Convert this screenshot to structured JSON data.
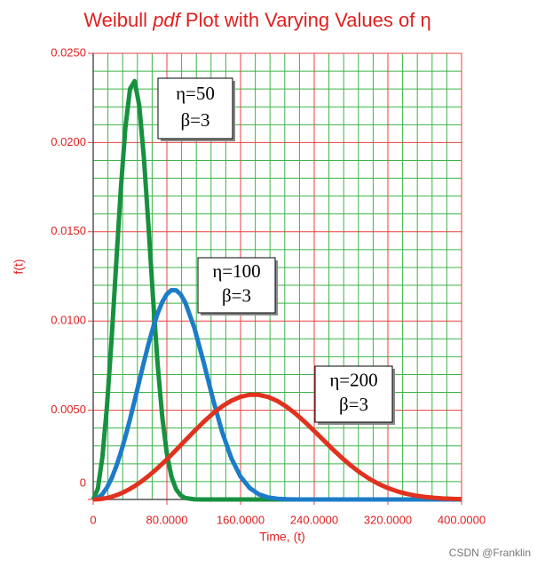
{
  "chart_data": {
    "type": "line",
    "title": [
      "Weibull",
      "pdf",
      "Plot with Varying Values of η"
    ],
    "x_label": "Time, (t)",
    "y_label": "f(t)",
    "watermark": "CSDN @Franklin",
    "x": [
      0,
      5,
      10,
      15,
      20,
      25,
      30,
      35,
      40,
      45,
      50,
      55,
      60,
      65,
      70,
      75,
      80,
      85,
      90,
      95,
      100,
      110,
      120,
      130,
      140,
      150,
      160,
      170,
      180,
      190,
      200,
      210,
      220,
      230,
      240,
      250,
      260,
      270,
      280,
      290,
      300,
      310,
      320,
      330,
      340,
      350,
      360,
      370,
      380,
      390,
      400
    ],
    "series": [
      {
        "color": "#17913f",
        "values": [
          0,
          0.000599,
          0.002381,
          0.005256,
          0.009005,
          0.013238,
          0.017403,
          0.020862,
          0.023013,
          0.023445,
          0.022073,
          0.019181,
          0.015345,
          0.011266,
          0.007562,
          0.004617,
          0.002556,
          0.001275,
          0.00057,
          0.000228,
          8.05e-05,
          6.9e-06,
          0,
          0,
          0,
          0,
          0,
          0,
          0,
          0,
          0,
          0,
          0,
          0,
          0,
          0,
          0,
          0,
          0,
          0,
          0,
          0,
          0,
          0,
          0,
          0,
          0,
          0,
          0,
          0,
          0
        ]
      },
      {
        "color": "#1c7cc8",
        "values": [
          0,
          7.5e-05,
          0.0003,
          0.000673,
          0.00119,
          0.001846,
          0.002628,
          0.003521,
          0.004503,
          0.005547,
          0.006619,
          0.007685,
          0.008702,
          0.009629,
          0.010431,
          0.011067,
          0.011507,
          0.011731,
          0.011722,
          0.011488,
          0.011036,
          0.00959,
          0.007672,
          0.005633,
          0.003781,
          0.002309,
          0.001278,
          0.000637,
          0.000285,
          0.000114,
          4e-05,
          1.26e-05,
          0,
          0,
          0,
          0,
          0,
          0,
          0,
          0,
          0,
          0,
          0,
          0,
          0,
          0,
          0,
          0,
          0,
          0,
          0
        ]
      },
      {
        "color": "#e0321e",
        "values": [
          0,
          9.4e-06,
          3.75e-05,
          8.43e-05,
          0.00015,
          0.000234,
          0.000336,
          0.000457,
          0.000595,
          0.000751,
          0.000923,
          0.001111,
          0.001314,
          0.001531,
          0.00176,
          0.002001,
          0.002251,
          0.002509,
          0.002773,
          0.00304,
          0.003309,
          0.003842,
          0.004351,
          0.004815,
          0.005216,
          0.005533,
          0.005753,
          0.005865,
          0.005861,
          0.005744,
          0.005518,
          0.005196,
          0.004795,
          0.004334,
          0.003836,
          0.003326,
          0.002816,
          0.002335,
          0.00189,
          0.001496,
          0.001154,
          0.00087,
          0.000639,
          0.000457,
          0.000319,
          0.000216,
          0.000142,
          9.14e-05,
          5.69e-05,
          3.43e-05,
          2.01e-05
        ]
      }
    ],
    "xlim": [
      0,
      400
    ],
    "ylim": [
      0,
      0.025
    ],
    "xticks": [
      0,
      {
        "value": 80,
        "label": "80.0000"
      },
      {
        "value": 160,
        "label": "160.0000"
      },
      {
        "value": 240,
        "label": "240.0000"
      },
      {
        "value": 320,
        "label": "320.0000"
      },
      {
        "value": 400,
        "label": "400.0000"
      }
    ],
    "yticks": [
      0,
      {
        "value": 0.005,
        "label": "0.0050"
      },
      {
        "value": 0.01,
        "label": "0.0100"
      },
      {
        "value": 0.015,
        "label": "0.0150"
      },
      {
        "value": 0.02,
        "label": "0.0200"
      },
      {
        "value": 0.025,
        "label": "0.0250"
      }
    ],
    "grid": true,
    "minor_grid_divisions": 5,
    "annotations": [
      {
        "lines": [
          "η=50",
          "β=3"
        ]
      },
      {
        "lines": [
          "η=100",
          "β=3"
        ]
      },
      {
        "lines": [
          "η=200",
          "β=3"
        ]
      }
    ]
  }
}
